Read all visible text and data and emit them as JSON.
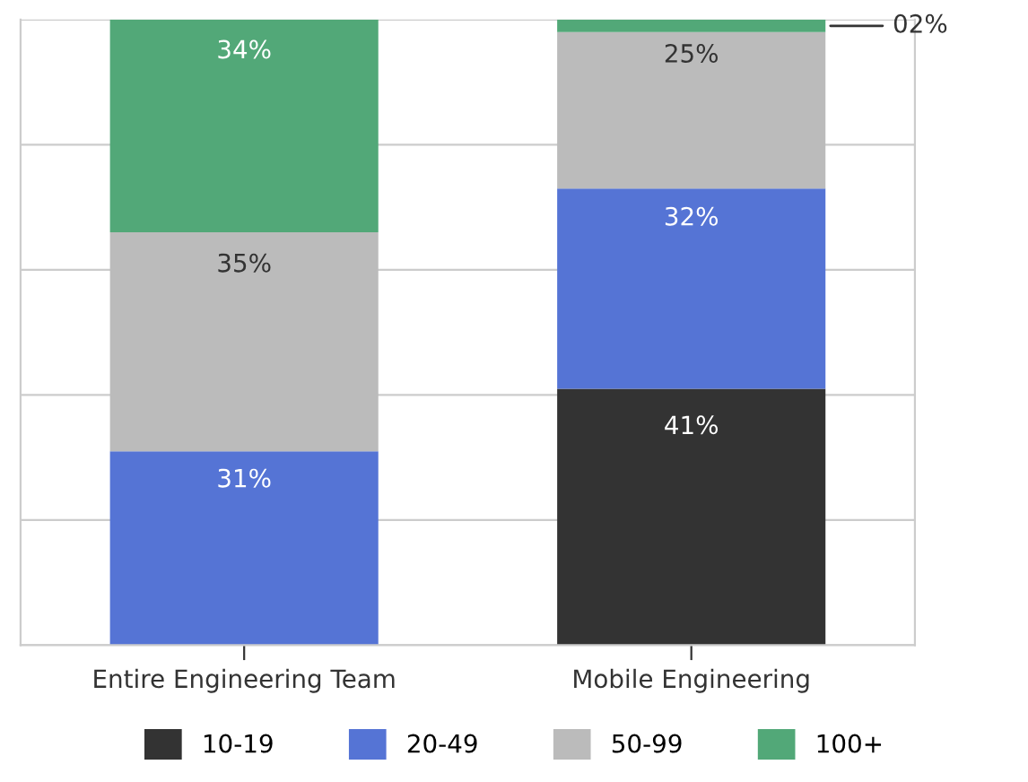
{
  "chart_data": {
    "type": "bar",
    "stacked": true,
    "categories": [
      "Entire Engineering Team",
      "Mobile Engineering"
    ],
    "series": [
      {
        "name": "10-19",
        "color": "#333333",
        "values": [
          0,
          41
        ],
        "value_labels": [
          null,
          "41%"
        ]
      },
      {
        "name": "20-49",
        "color": "#5574d5",
        "values": [
          31,
          32
        ],
        "value_labels": [
          "31%",
          "32%"
        ]
      },
      {
        "name": "50-99",
        "color": "#bbbbbb",
        "values": [
          35,
          25
        ],
        "value_labels": [
          "35%",
          "25%"
        ]
      },
      {
        "name": "100+",
        "color": "#52a878",
        "values": [
          34,
          2
        ],
        "value_labels": [
          "34%",
          "02%"
        ]
      }
    ],
    "ylim": [
      0,
      100
    ],
    "yticks": [
      {
        "value": 0,
        "label": null
      },
      {
        "value": 20,
        "label": null
      },
      {
        "value": 40,
        "label": null
      },
      {
        "value": 60,
        "label": null
      },
      {
        "value": 80,
        "label": null
      },
      {
        "value": 100,
        "label": null
      }
    ],
    "grid": "y",
    "legend": "bottom"
  }
}
